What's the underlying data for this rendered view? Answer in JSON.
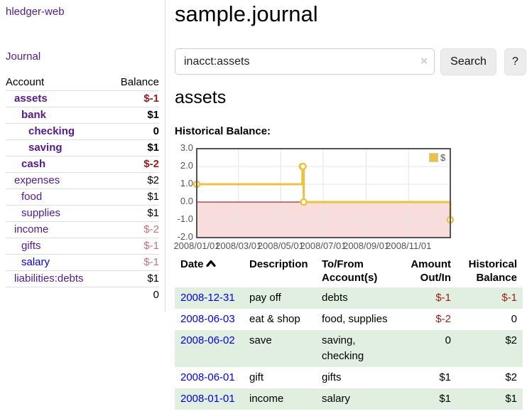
{
  "app": {
    "brand": "hledger-web",
    "nav_journal": "Journal"
  },
  "sidebar": {
    "headers": {
      "account": "Account",
      "balance": "Balance"
    },
    "accounts": [
      {
        "name": "assets",
        "depth": 0,
        "bold": true,
        "balance": "$-1",
        "balance_class": "amt-neg-strong",
        "link": "visited"
      },
      {
        "name": "bank",
        "depth": 1,
        "bold": true,
        "balance": "$1",
        "balance_class": "",
        "link": "visited"
      },
      {
        "name": "checking",
        "depth": 2,
        "bold": true,
        "balance": "0",
        "balance_class": "",
        "link": "visited"
      },
      {
        "name": "saving",
        "depth": 2,
        "bold": true,
        "balance": "$1",
        "balance_class": "",
        "link": "visited"
      },
      {
        "name": "cash",
        "depth": 1,
        "bold": true,
        "balance": "$-2",
        "balance_class": "amt-neg-strong",
        "link": "visited"
      },
      {
        "name": "expenses",
        "depth": 0,
        "bold": false,
        "balance": "$2",
        "balance_class": "",
        "link": "visited"
      },
      {
        "name": "food",
        "depth": 1,
        "bold": false,
        "balance": "$1",
        "balance_class": "",
        "link": "visited"
      },
      {
        "name": "supplies",
        "depth": 1,
        "bold": false,
        "balance": "$1",
        "balance_class": "",
        "link": "visited"
      },
      {
        "name": "income",
        "depth": 0,
        "bold": false,
        "balance": "$-2",
        "balance_class": "amt-neg-dim",
        "link": "visited"
      },
      {
        "name": "gifts",
        "depth": 1,
        "bold": false,
        "balance": "$-1",
        "balance_class": "amt-neg-dim",
        "link": "visited"
      },
      {
        "name": "salary",
        "depth": 1,
        "bold": false,
        "balance": "$-1",
        "balance_class": "amt-neg-dim",
        "link": "unvisited"
      },
      {
        "name": "liabilities:debts",
        "depth": 0,
        "bold": false,
        "balance": "$1",
        "balance_class": "",
        "link": "visited"
      }
    ],
    "total": "0"
  },
  "header": {
    "title": "sample.journal"
  },
  "search": {
    "value": "inacct:assets",
    "clear_icon": "×",
    "button": "Search",
    "help_button": "?"
  },
  "account_page": {
    "title": "assets",
    "chart_label": "Historical Balance:"
  },
  "chart_data": {
    "type": "line",
    "step": true,
    "title": "Historical Balance",
    "series": [
      {
        "name": "$",
        "color": "#edc240",
        "points": [
          [
            "2008-01-01",
            1
          ],
          [
            "2008-06-01",
            2
          ],
          [
            "2008-06-02",
            2
          ],
          [
            "2008-06-03",
            0
          ],
          [
            "2008-12-31",
            -1
          ]
        ]
      }
    ],
    "x_ticks": [
      "2008/01/01",
      "2008/03/01",
      "2008/05/01",
      "2008/07/01",
      "2008/09/01",
      "2008/11/01"
    ],
    "y_ticks": [
      "3.0",
      "2.0",
      "1.0",
      "0.0",
      "-1.0",
      "-2.0"
    ],
    "ylim": [
      -2,
      3
    ],
    "x_range": [
      "2008-01-01",
      "2008-12-31"
    ],
    "legend": {
      "label": "$",
      "position": "top-right"
    },
    "grid": true,
    "negative_region_fill": "#f9dcdc",
    "zero_line_color": "#8b0000",
    "border_color": "#545454",
    "grid_color": "#e5e5e5"
  },
  "register": {
    "columns": [
      {
        "label": "Date",
        "align": "l",
        "sorted": "asc"
      },
      {
        "label": "Description",
        "align": "l"
      },
      {
        "label": "To/From Account(s)",
        "align": "l"
      },
      {
        "label": "Amount Out/In",
        "align": "r"
      },
      {
        "label": "Historical Balance",
        "align": "r"
      }
    ],
    "rows": [
      {
        "date": "2008-12-31",
        "description": "pay off",
        "accounts": "debts",
        "amount": "$-1",
        "amount_neg": true,
        "balance": "$-1",
        "balance_neg": true
      },
      {
        "date": "2008-06-03",
        "description": "eat & shop",
        "accounts": "food, supplies",
        "amount": "$-2",
        "amount_neg": true,
        "balance": "0",
        "balance_neg": false
      },
      {
        "date": "2008-06-02",
        "description": "save",
        "accounts": "saving, checking",
        "amount": "0",
        "amount_neg": false,
        "balance": "$2",
        "balance_neg": false
      },
      {
        "date": "2008-06-01",
        "description": "gift",
        "accounts": "gifts",
        "amount": "$1",
        "amount_neg": false,
        "balance": "$2",
        "balance_neg": false
      },
      {
        "date": "2008-01-01",
        "description": "income",
        "accounts": "salary",
        "amount": "$1",
        "amount_neg": false,
        "balance": "$1",
        "balance_neg": false
      }
    ]
  },
  "colors": {
    "link_visited": "#551a8b",
    "link_unvisited": "#0000ee",
    "negative_strong": "#9c1a1a",
    "negative_dim": "#c1747c",
    "row_green": "#e0efe0",
    "series_yellow": "#edc240"
  }
}
